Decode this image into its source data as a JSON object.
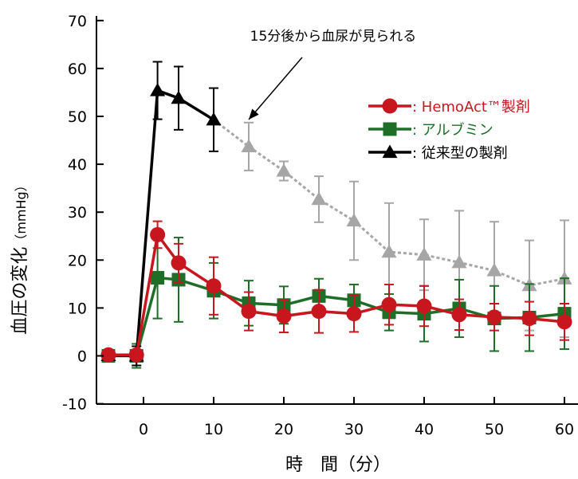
{
  "chart_data": {
    "type": "line",
    "title": "",
    "xlabel": "時　間（分）",
    "ylabel": "血圧の変化",
    "ylabel_unit": "（mmHg）",
    "xlim": [
      -7,
      61
    ],
    "ylim": [
      -10,
      70
    ],
    "xticks": [
      0,
      10,
      20,
      30,
      40,
      50,
      60
    ],
    "yticks": [
      -10,
      0,
      10,
      20,
      30,
      40,
      50,
      60,
      70
    ],
    "grid": false,
    "legend_position": "right",
    "annotation": {
      "text": "15分後から血尿が見られる",
      "points_to": {
        "x": 15,
        "y": 51
      }
    },
    "series": [
      {
        "name": "HemoAct™製剤",
        "legend_label": ": HemoAct™製剤",
        "color": "#c8161e",
        "marker": "circle",
        "x": [
          -5,
          -1,
          2,
          5,
          10,
          15,
          20,
          25,
          30,
          35,
          40,
          45,
          50,
          55,
          60
        ],
        "y": [
          0.2,
          0.2,
          25.3,
          19.4,
          14.6,
          9.3,
          8.3,
          9.3,
          8.8,
          10.7,
          10.4,
          8.6,
          8.1,
          7.8,
          7.1
        ],
        "err": [
          0.8,
          0.8,
          2.8,
          4.0,
          6.0,
          4.0,
          3.4,
          4.5,
          3.8,
          4.2,
          4.2,
          3.2,
          2.8,
          3.5,
          3.8
        ]
      },
      {
        "name": "アルブミン",
        "legend_label": ": アルブミン",
        "color": "#1e6e28",
        "marker": "square",
        "x": [
          -5,
          -1,
          2,
          5,
          10,
          15,
          20,
          25,
          30,
          35,
          40,
          45,
          50,
          55,
          60
        ],
        "y": [
          0.0,
          0.0,
          16.3,
          15.9,
          13.6,
          11.0,
          10.6,
          12.5,
          11.6,
          9.1,
          8.8,
          9.9,
          7.8,
          8.0,
          8.8
        ],
        "err": [
          0.6,
          2.5,
          8.5,
          8.8,
          5.8,
          4.7,
          3.9,
          3.6,
          3.3,
          3.8,
          5.8,
          6.0,
          6.8,
          7.0,
          7.4
        ]
      },
      {
        "name": "従来型の製剤",
        "legend_label": ": 従来型の製剤",
        "color": "#000000",
        "marker": "triangle",
        "x": [
          -5,
          -1,
          2,
          5,
          10
        ],
        "y": [
          0.1,
          0.0,
          55.4,
          53.8,
          49.3
        ],
        "err": [
          0.5,
          2.0,
          6.0,
          6.6,
          6.6
        ]
      },
      {
        "name": "従来型の製剤（15分以降）",
        "color": "#a6a6a6",
        "marker": "triangle",
        "dashed": true,
        "x": [
          10,
          15,
          20,
          25,
          30,
          35,
          40,
          45,
          50,
          55,
          60
        ],
        "y": [
          49.3,
          43.7,
          38.6,
          32.7,
          28.2,
          21.7,
          21.1,
          19.5,
          17.8,
          14.7,
          16.1
        ],
        "err": [
          0,
          5.0,
          2.0,
          4.8,
          8.2,
          10.2,
          7.4,
          10.8,
          10.2,
          9.4,
          12.2
        ]
      }
    ]
  }
}
